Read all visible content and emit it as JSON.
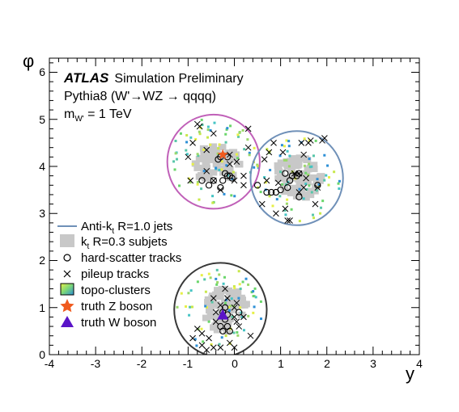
{
  "chart_data": {
    "type": "scatter",
    "xlabel": "y",
    "ylabel": "φ",
    "xlim": [
      -4,
      4
    ],
    "ylim": [
      0,
      6.3
    ],
    "x_ticks": [
      "-4",
      "-3",
      "-2",
      "-1",
      "0",
      "1",
      "2",
      "3",
      "4"
    ],
    "y_ticks": [
      "0",
      "1",
      "2",
      "3",
      "4",
      "5",
      "6"
    ],
    "annotations": {
      "experiment": "ATLAS",
      "status": "Simulation Preliminary",
      "process": "Pythia8 (W'→WZ → qqqq)",
      "mass_main": "m",
      "mass_sub": "W'",
      "mass_value": " = 1 TeV"
    },
    "legend": {
      "position": "left",
      "items": [
        {
          "label": "Anti-k",
          "sub": "t",
          "rest": " R=1.0 jets",
          "symbol": "line",
          "color": "#6f90b8"
        },
        {
          "label": "k",
          "sub": "t",
          "rest": " R=0.3 subjets",
          "symbol": "box",
          "color": "#c8c8c8"
        },
        {
          "label": "hard-scatter tracks",
          "symbol": "circle",
          "color": "#000000"
        },
        {
          "label": "pileup tracks",
          "symbol": "cross",
          "color": "#000000"
        },
        {
          "label": "topo-clusters",
          "symbol": "square-grad",
          "color": "#45c4c4"
        },
        {
          "label": "truth Z boson",
          "symbol": "star",
          "color": "#f05a1e"
        },
        {
          "label": "truth W boson",
          "symbol": "triangle",
          "color": "#5a14c8"
        }
      ]
    },
    "jets": [
      {
        "name": "jet-1",
        "center": [
          -0.45,
          4.1
        ],
        "radius": 1.0,
        "color": "#c060b8"
      },
      {
        "name": "jet-2",
        "center": [
          1.35,
          3.75
        ],
        "radius": 1.0,
        "color": "#6f90b8"
      },
      {
        "name": "jet-3",
        "center": [
          -0.3,
          0.95
        ],
        "radius": 1.0,
        "color": "#383838"
      }
    ],
    "subjets": [
      {
        "center": [
          -0.4,
          4.05
        ],
        "w": 1.05,
        "h": 0.8
      },
      {
        "center": [
          1.35,
          3.75
        ],
        "w": 1.05,
        "h": 0.9
      },
      {
        "center": [
          -0.2,
          0.95
        ],
        "w": 0.95,
        "h": 0.95
      }
    ],
    "hard_scatter_tracks": [
      [
        -0.3,
        4.2
      ],
      [
        -0.1,
        3.8
      ],
      [
        -0.15,
        3.8
      ],
      [
        -0.25,
        3.7
      ],
      [
        -0.45,
        3.7
      ],
      [
        -0.2,
        3.85
      ],
      [
        -0.05,
        3.75
      ],
      [
        -0.15,
        4.2
      ],
      [
        -0.35,
        4.15
      ],
      [
        -0.55,
        3.6
      ],
      [
        -0.7,
        3.7
      ],
      [
        -0.3,
        3.55
      ],
      [
        0.5,
        3.6
      ],
      [
        0.7,
        3.45
      ],
      [
        0.8,
        3.45
      ],
      [
        0.9,
        3.45
      ],
      [
        1.25,
        3.8
      ],
      [
        1.35,
        3.8
      ],
      [
        1.15,
        3.55
      ],
      [
        1.4,
        3.85
      ],
      [
        1.2,
        3.7
      ],
      [
        1.8,
        3.6
      ],
      [
        1.4,
        3.35
      ],
      [
        1.1,
        3.85
      ],
      [
        1.0,
        3.5
      ],
      [
        -0.25,
        0.9
      ],
      [
        -0.2,
        0.75
      ],
      [
        -0.15,
        0.6
      ],
      [
        -0.1,
        0.5
      ],
      [
        -0.25,
        0.5
      ],
      [
        0.1,
        0.9
      ],
      [
        -0.2,
        1.0
      ],
      [
        -0.3,
        0.6
      ],
      [
        -0.15,
        0.85
      ]
    ],
    "pileup_tracks": [
      [
        -0.8,
        4.9
      ],
      [
        -0.75,
        4.85
      ],
      [
        0.3,
        4.8
      ],
      [
        -0.9,
        4.5
      ],
      [
        -0.45,
        4.7
      ],
      [
        0.3,
        4.4
      ],
      [
        -0.6,
        4.35
      ],
      [
        -1.0,
        4.2
      ],
      [
        -0.1,
        4.25
      ],
      [
        0.05,
        4.1
      ],
      [
        -0.6,
        3.9
      ],
      [
        -0.95,
        3.7
      ],
      [
        -0.3,
        3.5
      ],
      [
        0.0,
        3.7
      ],
      [
        0.2,
        3.6
      ],
      [
        -0.45,
        3.7
      ],
      [
        0.2,
        3.8
      ],
      [
        -0.1,
        4.05
      ],
      [
        0.85,
        4.5
      ],
      [
        1.05,
        4.3
      ],
      [
        1.45,
        4.5
      ],
      [
        1.6,
        4.5
      ],
      [
        1.65,
        4.55
      ],
      [
        1.95,
        4.6
      ],
      [
        1.9,
        4.55
      ],
      [
        1.5,
        4.25
      ],
      [
        0.75,
        4.3
      ],
      [
        0.65,
        4.15
      ],
      [
        1.3,
        3.85
      ],
      [
        1.4,
        3.85
      ],
      [
        1.55,
        3.75
      ],
      [
        1.8,
        3.55
      ],
      [
        1.5,
        3.55
      ],
      [
        0.95,
        3.65
      ],
      [
        1.1,
        3.1
      ],
      [
        1.15,
        2.85
      ],
      [
        1.2,
        2.85
      ],
      [
        0.9,
        3.0
      ],
      [
        1.75,
        3.2
      ],
      [
        0.7,
        3.7
      ],
      [
        0.6,
        3.2
      ],
      [
        1.4,
        3.45
      ],
      [
        -0.2,
        1.4
      ],
      [
        -0.45,
        1.2
      ],
      [
        -0.4,
        0.9
      ],
      [
        0.0,
        0.8
      ],
      [
        0.05,
        0.7
      ],
      [
        -0.8,
        0.55
      ],
      [
        -0.7,
        0.45
      ],
      [
        -0.55,
        0.35
      ],
      [
        -0.7,
        0.2
      ],
      [
        -0.45,
        0.15
      ],
      [
        -0.3,
        0.15
      ],
      [
        -0.1,
        0.25
      ],
      [
        0.0,
        0.15
      ],
      [
        0.35,
        0.4
      ],
      [
        0.1,
        0.6
      ],
      [
        0.05,
        1.1
      ],
      [
        -0.3,
        1.05
      ],
      [
        -0.9,
        0.35
      ],
      [
        -0.6,
        0.1
      ],
      [
        0.2,
        0.8
      ],
      [
        -0.15,
        1.2
      ],
      [
        0.0,
        1.0
      ],
      [
        -0.4,
        0.7
      ]
    ],
    "truth_z": {
      "y": -0.25,
      "phi": 4.25
    },
    "truth_w": {
      "y": -0.25,
      "phi": 0.85
    }
  }
}
